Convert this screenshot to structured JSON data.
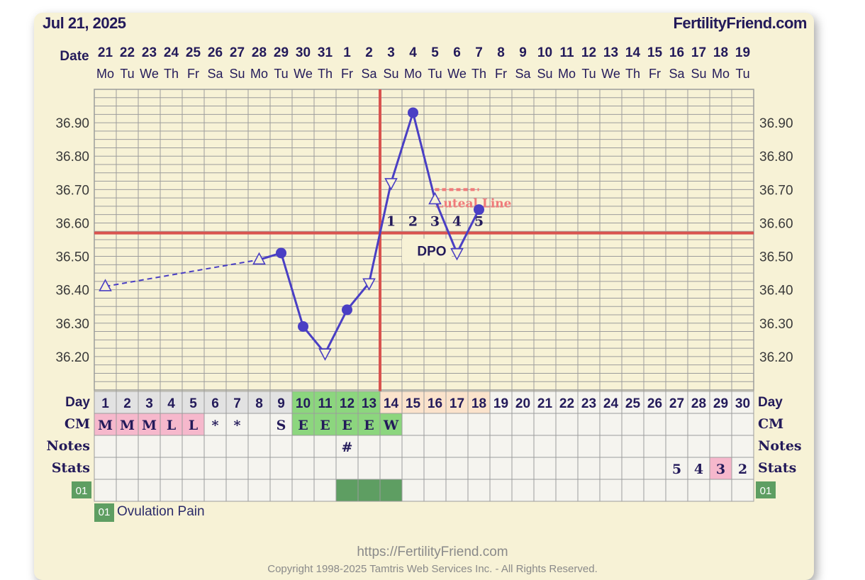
{
  "header": {
    "date": "Jul 21, 2025",
    "site": "FertilityFriend.com"
  },
  "axis_labels": {
    "date": "Date",
    "day": "Day",
    "cm": "CM",
    "notes": "Notes",
    "stats": "Stats",
    "code": "01"
  },
  "chart_data": {
    "type": "line",
    "ylim": [
      36.1,
      37.0
    ],
    "y_ticks": [
      "36.90",
      "36.80",
      "36.70",
      "36.60",
      "36.50",
      "36.40",
      "36.30",
      "36.20"
    ],
    "y_tick_values": [
      36.9,
      36.8,
      36.7,
      36.6,
      36.5,
      36.4,
      36.3,
      36.2
    ],
    "dates": [
      "21",
      "22",
      "23",
      "24",
      "25",
      "26",
      "27",
      "28",
      "29",
      "30",
      "31",
      "1",
      "2",
      "3",
      "4",
      "5",
      "6",
      "7",
      "8",
      "9",
      "10",
      "11",
      "12",
      "13",
      "14",
      "15",
      "16",
      "17",
      "18",
      "19"
    ],
    "weekdays": [
      "Mo",
      "Tu",
      "We",
      "Th",
      "Fr",
      "Sa",
      "Su",
      "Mo",
      "Tu",
      "We",
      "Th",
      "Fr",
      "Sa",
      "Su",
      "Mo",
      "Tu",
      "We",
      "Th",
      "Fr",
      "Sa",
      "Su",
      "Mo",
      "Tu",
      "We",
      "Th",
      "Fr",
      "Sa",
      "Su",
      "Mo",
      "Tu"
    ],
    "cycle_days": [
      "1",
      "2",
      "3",
      "4",
      "5",
      "6",
      "7",
      "8",
      "9",
      "10",
      "11",
      "12",
      "13",
      "14",
      "15",
      "16",
      "17",
      "18",
      "19",
      "20",
      "21",
      "22",
      "23",
      "24",
      "25",
      "26",
      "27",
      "28",
      "29",
      "30"
    ],
    "temperatures": [
      {
        "day": 1,
        "temp": 36.41,
        "marker": "triangle"
      },
      {
        "day": 8,
        "temp": 36.49,
        "marker": "triangle"
      },
      {
        "day": 9,
        "temp": 36.51,
        "marker": "dot"
      },
      {
        "day": 10,
        "temp": 36.29,
        "marker": "dot"
      },
      {
        "day": 11,
        "temp": 36.21,
        "marker": "triangle-down"
      },
      {
        "day": 12,
        "temp": 36.34,
        "marker": "dot"
      },
      {
        "day": 13,
        "temp": 36.42,
        "marker": "triangle-down"
      },
      {
        "day": 14,
        "temp": 36.72,
        "marker": "triangle-down"
      },
      {
        "day": 15,
        "temp": 36.93,
        "marker": "dot"
      },
      {
        "day": 16,
        "temp": 36.67,
        "marker": "triangle"
      },
      {
        "day": 17,
        "temp": 36.51,
        "marker": "triangle-down"
      },
      {
        "day": 18,
        "temp": 36.64,
        "marker": "dot"
      }
    ],
    "dashed_segment_days": [
      1,
      8
    ],
    "coverline": 36.57,
    "ovulation_day": 13,
    "luteal_line": {
      "temp": 36.7,
      "from_day": 16,
      "to_day": 18,
      "label": "Luteal Line"
    },
    "dpo": {
      "label": "DPO",
      "numbers": [
        "1",
        "2",
        "3",
        "4",
        "5"
      ],
      "start_day": 14
    },
    "cm_row": [
      "M",
      "M",
      "M",
      "L",
      "L",
      "*",
      "*",
      "",
      "S",
      "E",
      "E",
      "E",
      "E",
      "W",
      "",
      "",
      "",
      "",
      "",
      "",
      "",
      "",
      "",
      "",
      "",
      "",
      "",
      "",
      "",
      ""
    ],
    "notes_row": [
      "",
      "",
      "",
      "",
      "",
      "",
      "",
      "",
      "",
      "",
      "",
      "#",
      "",
      "",
      "",
      "",
      "",
      "",
      "",
      "",
      "",
      "",
      "",
      "",
      "",
      "",
      "",
      "",
      "",
      ""
    ],
    "stats_row": [
      "",
      "",
      "",
      "",
      "",
      "",
      "",
      "",
      "",
      "",
      "",
      "",
      "",
      "",
      "",
      "",
      "",
      "",
      "",
      "",
      "",
      "",
      "",
      "",
      "",
      "",
      "5",
      "4",
      "3",
      "2"
    ],
    "code_row_filled_days": [
      12,
      13,
      14
    ],
    "fertile_days": [
      10,
      11,
      12,
      13
    ],
    "peach_days": [
      14,
      15,
      16,
      17,
      18
    ],
    "grey_days": [
      1,
      2,
      3,
      4,
      5,
      6,
      7,
      8,
      9
    ],
    "colors": {
      "line": "#4a3fc4",
      "coverline": "#d9534f",
      "luteal": "#f07a7a",
      "grid": "#9c9c9c",
      "fertile": "#8cd67e",
      "peach": "#fbe3cc",
      "grey": "#e2e2e2",
      "cm_pink": "#f6b8cc",
      "stat_pink": "#f6b8cc",
      "code_green": "#5e9e62"
    }
  },
  "legend": {
    "code": "01",
    "label": "Ovulation Pain"
  },
  "footer": {
    "url": "https://FertilityFriend.com",
    "copyright": "Copyright 1998-2025 Tamtris Web Services Inc. - All Rights Reserved."
  }
}
